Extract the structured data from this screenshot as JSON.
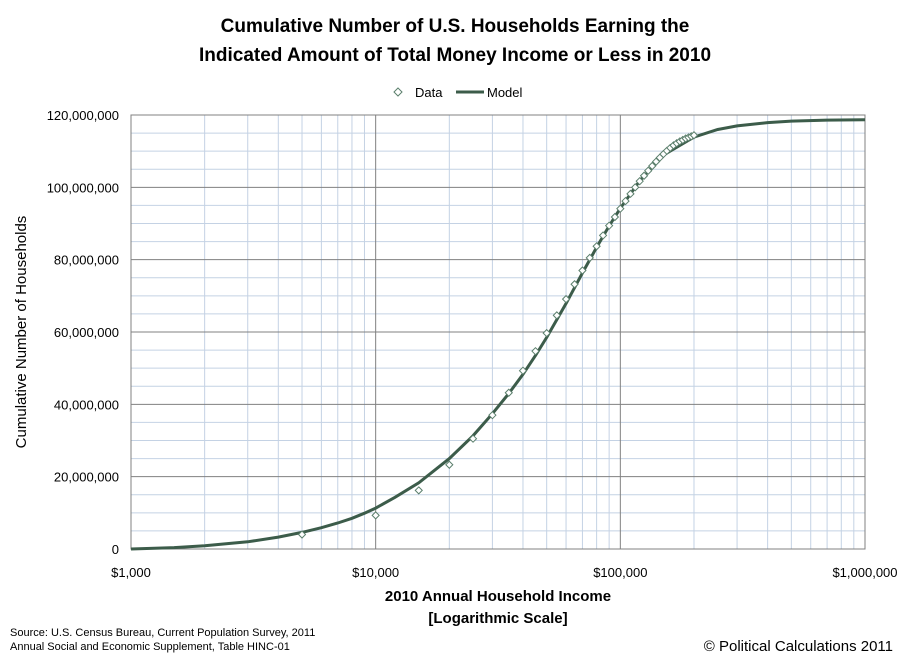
{
  "chart_data": {
    "type": "scatter",
    "title_lines": [
      "Cumulative Number of U.S. Households Earning the",
      "Indicated Amount of Total Money Income or Less in 2010"
    ],
    "xlabel_lines": [
      "2010 Annual Household Income",
      "[Logarithmic Scale]"
    ],
    "ylabel": "Cumulative Number of Households",
    "x_scale": "log",
    "xlim": [
      1000,
      1000000
    ],
    "ylim": [
      0,
      120000000
    ],
    "x_ticks": [
      {
        "value": 1000,
        "label": "$1,000"
      },
      {
        "value": 10000,
        "label": "$10,000"
      },
      {
        "value": 100000,
        "label": "$100,000"
      },
      {
        "value": 1000000,
        "label": "$1,000,000"
      }
    ],
    "y_ticks": [
      {
        "value": 0,
        "label": "0"
      },
      {
        "value": 20000000,
        "label": "20,000,000"
      },
      {
        "value": 40000000,
        "label": "40,000,000"
      },
      {
        "value": 60000000,
        "label": "60,000,000"
      },
      {
        "value": 80000000,
        "label": "80,000,000"
      },
      {
        "value": 100000000,
        "label": "100,000,000"
      },
      {
        "value": 120000000,
        "label": "120,000,000"
      }
    ],
    "grid": true,
    "legend_position": "top-center",
    "series": [
      {
        "name": "Data",
        "kind": "markers",
        "marker": "diamond",
        "color": "#5b7f6c",
        "points": [
          {
            "x": 5000,
            "y": 4000000
          },
          {
            "x": 10000,
            "y": 9300000
          },
          {
            "x": 15000,
            "y": 16200000
          },
          {
            "x": 20000,
            "y": 23300000
          },
          {
            "x": 25000,
            "y": 30500000
          },
          {
            "x": 30000,
            "y": 37000000
          },
          {
            "x": 35000,
            "y": 43200000
          },
          {
            "x": 40000,
            "y": 49300000
          },
          {
            "x": 45000,
            "y": 54700000
          },
          {
            "x": 50000,
            "y": 59700000
          },
          {
            "x": 55000,
            "y": 64600000
          },
          {
            "x": 60000,
            "y": 69100000
          },
          {
            "x": 65000,
            "y": 73200000
          },
          {
            "x": 70000,
            "y": 77000000
          },
          {
            "x": 75000,
            "y": 80500000
          },
          {
            "x": 80000,
            "y": 83700000
          },
          {
            "x": 85000,
            "y": 86700000
          },
          {
            "x": 90000,
            "y": 89400000
          },
          {
            "x": 95000,
            "y": 91800000
          },
          {
            "x": 100000,
            "y": 94100000
          },
          {
            "x": 105000,
            "y": 96200000
          },
          {
            "x": 110000,
            "y": 98200000
          },
          {
            "x": 115000,
            "y": 100000000
          },
          {
            "x": 120000,
            "y": 101700000
          },
          {
            "x": 125000,
            "y": 103200000
          },
          {
            "x": 130000,
            "y": 104600000
          },
          {
            "x": 135000,
            "y": 105900000
          },
          {
            "x": 140000,
            "y": 107100000
          },
          {
            "x": 145000,
            "y": 108200000
          },
          {
            "x": 150000,
            "y": 109200000
          },
          {
            "x": 155000,
            "y": 110100000
          },
          {
            "x": 160000,
            "y": 110900000
          },
          {
            "x": 165000,
            "y": 111600000
          },
          {
            "x": 170000,
            "y": 112200000
          },
          {
            "x": 175000,
            "y": 112700000
          },
          {
            "x": 180000,
            "y": 113100000
          },
          {
            "x": 185000,
            "y": 113500000
          },
          {
            "x": 190000,
            "y": 113800000
          },
          {
            "x": 195000,
            "y": 114100000
          },
          {
            "x": 200000,
            "y": 114400000
          }
        ]
      },
      {
        "name": "Model",
        "kind": "line",
        "color": "#3c5c4a",
        "points": [
          {
            "x": 1000,
            "y": 0
          },
          {
            "x": 1500,
            "y": 400000
          },
          {
            "x": 2000,
            "y": 900000
          },
          {
            "x": 3000,
            "y": 2000000
          },
          {
            "x": 4000,
            "y": 3300000
          },
          {
            "x": 5000,
            "y": 4600000
          },
          {
            "x": 6000,
            "y": 5900000
          },
          {
            "x": 7000,
            "y": 7200000
          },
          {
            "x": 8000,
            "y": 8500000
          },
          {
            "x": 9000,
            "y": 9900000
          },
          {
            "x": 10000,
            "y": 11300000
          },
          {
            "x": 12000,
            "y": 14300000
          },
          {
            "x": 15000,
            "y": 18300000
          },
          {
            "x": 20000,
            "y": 25000000
          },
          {
            "x": 25000,
            "y": 31300000
          },
          {
            "x": 30000,
            "y": 37400000
          },
          {
            "x": 35000,
            "y": 43000000
          },
          {
            "x": 40000,
            "y": 48300000
          },
          {
            "x": 45000,
            "y": 53500000
          },
          {
            "x": 50000,
            "y": 58500000
          },
          {
            "x": 60000,
            "y": 67900000
          },
          {
            "x": 70000,
            "y": 76300000
          },
          {
            "x": 80000,
            "y": 83400000
          },
          {
            "x": 90000,
            "y": 89300000
          },
          {
            "x": 100000,
            "y": 94200000
          },
          {
            "x": 120000,
            "y": 101800000
          },
          {
            "x": 150000,
            "y": 108900000
          },
          {
            "x": 200000,
            "y": 113900000
          },
          {
            "x": 250000,
            "y": 116000000
          },
          {
            "x": 300000,
            "y": 117000000
          },
          {
            "x": 400000,
            "y": 117900000
          },
          {
            "x": 500000,
            "y": 118300000
          },
          {
            "x": 700000,
            "y": 118600000
          },
          {
            "x": 1000000,
            "y": 118700000
          }
        ]
      }
    ]
  },
  "footer": {
    "source_lines": [
      "Source: U.S. Census Bureau, Current Population Survey, 2011",
      "Annual Social and Economic Supplement, Table HINC-01"
    ],
    "copyright": "© Political Calculations 2011"
  }
}
